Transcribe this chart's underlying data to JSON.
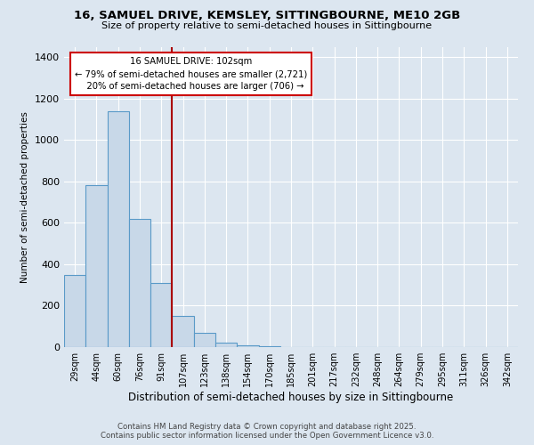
{
  "title": "16, SAMUEL DRIVE, KEMSLEY, SITTINGBOURNE, ME10 2GB",
  "subtitle": "Size of property relative to semi-detached houses in Sittingbourne",
  "xlabel": "Distribution of semi-detached houses by size in Sittingbourne",
  "ylabel": "Number of semi-detached properties",
  "footer": "Contains HM Land Registry data © Crown copyright and database right 2025.\nContains public sector information licensed under the Open Government Licence v3.0.",
  "categories": [
    "29sqm",
    "44sqm",
    "60sqm",
    "76sqm",
    "91sqm",
    "107sqm",
    "123sqm",
    "138sqm",
    "154sqm",
    "170sqm",
    "185sqm",
    "201sqm",
    "217sqm",
    "232sqm",
    "248sqm",
    "264sqm",
    "279sqm",
    "295sqm",
    "311sqm",
    "326sqm",
    "342sqm"
  ],
  "values": [
    350,
    780,
    1140,
    620,
    310,
    150,
    70,
    20,
    10,
    5,
    2,
    0,
    0,
    0,
    0,
    0,
    0,
    0,
    0,
    0,
    0
  ],
  "bar_color": "#c8d8e8",
  "bar_edge_color": "#5a9ac8",
  "annotation_label": "16 SAMUEL DRIVE: 102sqm",
  "smaller_pct": "79%",
  "smaller_count": "2,721",
  "larger_pct": "20%",
  "larger_count": "706",
  "line_color": "#aa0000",
  "annotation_box_edge_color": "#cc0000",
  "ylim": [
    0,
    1450
  ],
  "yticks": [
    0,
    200,
    400,
    600,
    800,
    1000,
    1200,
    1400
  ],
  "background_color": "#dce6f0",
  "grid_color": "#ffffff"
}
